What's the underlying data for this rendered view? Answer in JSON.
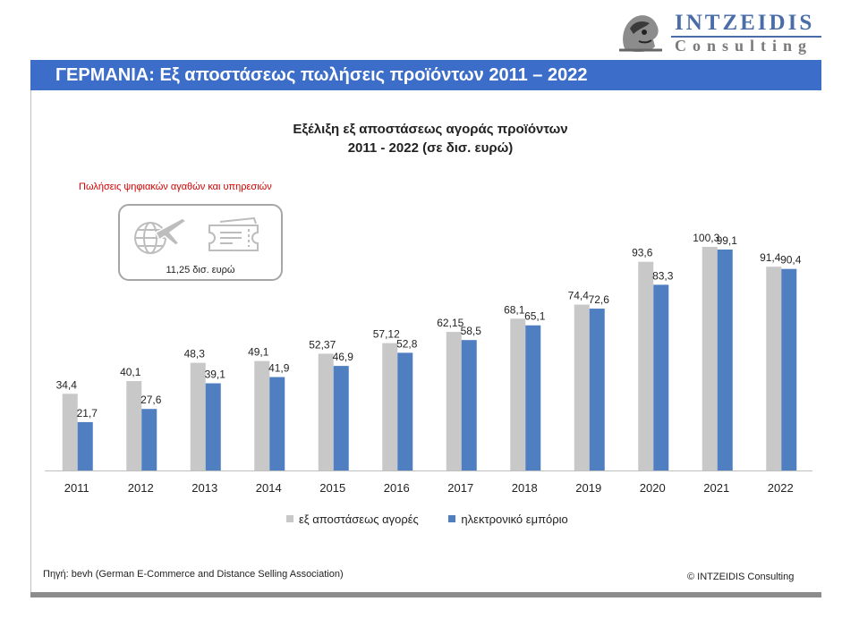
{
  "header": {
    "logo_line1": "INTZEIDIS",
    "logo_line2": "Consulting",
    "title": "ΓΕΡΜΑΝΙΑ: Εξ αποστάσεως πωλήσεις προϊόντων 2011 – 2022"
  },
  "digital": {
    "label": "Πωλήσεις  ψηφιακών  αγαθών  και υπηρεσιών",
    "value": "11,25 δισ. ευρώ",
    "icons": [
      "globe-plane-icon",
      "ticket-icon"
    ]
  },
  "chart_data": {
    "type": "bar",
    "title": "Εξέλιξη εξ αποστάσεως αγοράς προϊόντων 2011 - 2022 (σε δισ. ευρώ)",
    "title_line1": "Εξέλιξη εξ αποστάσεως αγοράς προϊόντων",
    "title_line2": "2011 - 2022 (σε δισ. ευρώ)",
    "categories": [
      "2011",
      "2012",
      "2013",
      "2014",
      "2015",
      "2016",
      "2017",
      "2018",
      "2019",
      "2020",
      "2021",
      "2022"
    ],
    "series": [
      {
        "name": "εξ αποστάσεως αγορές",
        "color": "#c8c8c8",
        "values": [
          34.4,
          40.1,
          48.3,
          49.1,
          52.37,
          57.12,
          62.15,
          68.1,
          74.4,
          93.6,
          100.3,
          91.4
        ],
        "labels": [
          "34,4",
          "40,1",
          "48,3",
          "49,1",
          "52,37",
          "57,12",
          "62,15",
          "68,1",
          "74,4",
          "93,6",
          "100,3",
          "91,4"
        ]
      },
      {
        "name": "ηλεκτρονικό εμπόριο",
        "color": "#4f7fc1",
        "values": [
          21.7,
          27.6,
          39.1,
          41.9,
          46.9,
          52.8,
          58.5,
          65.1,
          72.6,
          83.3,
          99.1,
          90.4
        ],
        "labels": [
          "21,7",
          "27,6",
          "39,1",
          "41,9",
          "46,9",
          "52,8",
          "58,5",
          "65,1",
          "72,6",
          "83,3",
          "99,1",
          "90,4"
        ]
      }
    ],
    "xlabel": "",
    "ylabel": "",
    "ylim": [
      0,
      100.3
    ],
    "grid": false,
    "legend": "bottom"
  },
  "footer": {
    "source": "Πηγή: bevh  (German E-Commerce and Distance Selling Association)",
    "copyright": "© INTZEIDIS  Consulting"
  }
}
